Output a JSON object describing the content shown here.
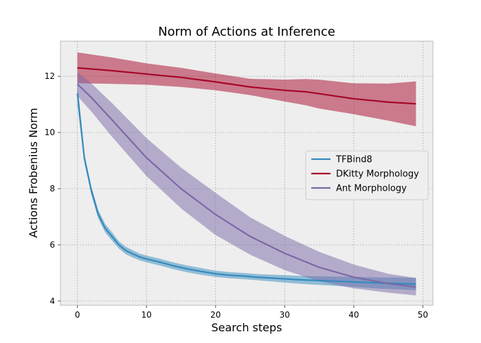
{
  "chart_data": {
    "type": "line",
    "title": "Norm of Actions at Inference",
    "xlabel": "Search steps",
    "ylabel": "Actions Frobenius Norm",
    "xlim": [
      -2.45,
      51.45
    ],
    "ylim": [
      3.85,
      13.25
    ],
    "xticks": [
      0,
      10,
      20,
      30,
      40,
      50
    ],
    "yticks": [
      4,
      6,
      8,
      10,
      12
    ],
    "grid": true,
    "legend": {
      "placement": "center-right"
    },
    "series": [
      {
        "name": "TFBind8",
        "color": "#348ABD",
        "x": [
          0,
          1,
          2,
          3,
          4,
          5,
          6,
          7,
          8,
          9,
          10,
          12,
          14,
          16,
          18,
          20,
          22,
          24,
          26,
          28,
          30,
          32,
          34,
          36,
          38,
          40,
          42,
          44,
          46,
          48,
          49
        ],
        "y": [
          11.4,
          9.1,
          7.95,
          7.1,
          6.6,
          6.3,
          6.0,
          5.8,
          5.68,
          5.57,
          5.5,
          5.38,
          5.25,
          5.14,
          5.05,
          4.97,
          4.92,
          4.89,
          4.85,
          4.82,
          4.79,
          4.76,
          4.74,
          4.72,
          4.7,
          4.68,
          4.66,
          4.64,
          4.63,
          4.61,
          4.6
        ],
        "lower": [
          11.0,
          8.95,
          7.8,
          6.95,
          6.45,
          6.15,
          5.87,
          5.67,
          5.55,
          5.45,
          5.38,
          5.26,
          5.13,
          5.02,
          4.93,
          4.86,
          4.81,
          4.78,
          4.74,
          4.7,
          4.66,
          4.62,
          4.59,
          4.56,
          4.53,
          4.5,
          4.47,
          4.44,
          4.42,
          4.4,
          4.38
        ],
        "upper": [
          11.8,
          9.25,
          8.1,
          7.25,
          6.75,
          6.45,
          6.13,
          5.93,
          5.81,
          5.69,
          5.62,
          5.5,
          5.37,
          5.26,
          5.17,
          5.08,
          5.03,
          5.0,
          4.96,
          4.94,
          4.92,
          4.9,
          4.89,
          4.88,
          4.87,
          4.86,
          4.85,
          4.84,
          4.84,
          4.83,
          4.83
        ]
      },
      {
        "name": "DKitty Morphology",
        "color": "#A60628",
        "x": [
          0,
          5,
          10,
          15,
          20,
          25,
          30,
          33,
          35,
          40,
          45,
          49
        ],
        "y": [
          12.3,
          12.2,
          12.08,
          11.96,
          11.8,
          11.62,
          11.5,
          11.45,
          11.38,
          11.2,
          11.08,
          11.02
        ],
        "lower": [
          11.75,
          11.73,
          11.7,
          11.62,
          11.5,
          11.33,
          11.1,
          10.97,
          10.85,
          10.65,
          10.42,
          10.22
        ],
        "upper": [
          12.85,
          12.67,
          12.46,
          12.3,
          12.1,
          11.91,
          11.88,
          11.9,
          11.88,
          11.75,
          11.74,
          11.82
        ]
      },
      {
        "name": "Ant Morphology",
        "color": "#7A68A6",
        "x": [
          0,
          2,
          5,
          10,
          15,
          20,
          25,
          30,
          35,
          40,
          45,
          49
        ],
        "y": [
          11.72,
          11.25,
          10.45,
          9.1,
          8.0,
          7.08,
          6.3,
          5.7,
          5.2,
          4.85,
          4.62,
          4.5
        ],
        "lower": [
          11.3,
          10.75,
          9.85,
          8.45,
          7.3,
          6.35,
          5.65,
          5.1,
          4.7,
          4.45,
          4.3,
          4.2
        ],
        "upper": [
          12.15,
          11.75,
          11.05,
          9.8,
          8.75,
          7.85,
          6.98,
          6.32,
          5.75,
          5.3,
          4.97,
          4.82
        ]
      }
    ]
  }
}
